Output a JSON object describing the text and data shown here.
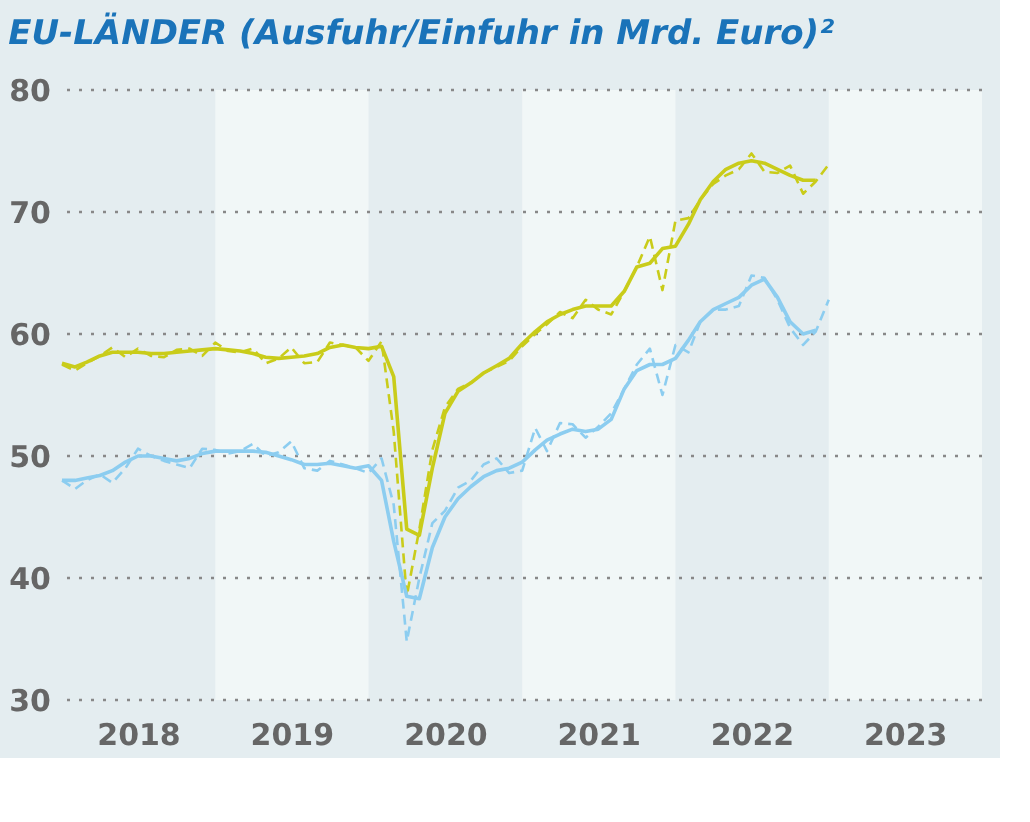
{
  "chart_data": {
    "type": "line",
    "title": "EU-LÄNDER (Ausfuhr/Einfuhr in Mrd. Euro)²",
    "x": [
      "2018-01",
      "2018-02",
      "2018-03",
      "2018-04",
      "2018-05",
      "2018-06",
      "2018-07",
      "2018-08",
      "2018-09",
      "2018-10",
      "2018-11",
      "2018-12",
      "2019-01",
      "2019-02",
      "2019-03",
      "2019-04",
      "2019-05",
      "2019-06",
      "2019-07",
      "2019-08",
      "2019-09",
      "2019-10",
      "2019-11",
      "2019-12",
      "2020-01",
      "2020-02",
      "2020-03",
      "2020-04",
      "2020-05",
      "2020-06",
      "2020-07",
      "2020-08",
      "2020-09",
      "2020-10",
      "2020-11",
      "2020-12",
      "2021-01",
      "2021-02",
      "2021-03",
      "2021-04",
      "2021-05",
      "2021-06",
      "2021-07",
      "2021-08",
      "2021-09",
      "2021-10",
      "2021-11",
      "2021-12",
      "2022-01",
      "2022-02",
      "2022-03",
      "2022-04",
      "2022-05",
      "2022-06",
      "2022-07",
      "2022-08",
      "2022-09",
      "2022-10",
      "2022-11",
      "2022-12",
      "2023-01"
    ],
    "series": [
      {
        "color": "#c9cc1a",
        "line_style": "dashed",
        "values": [
          57.5,
          57.0,
          57.6,
          58.2,
          58.9,
          58.1,
          58.8,
          58.2,
          58.1,
          58.7,
          58.8,
          58.2,
          59.3,
          58.6,
          58.5,
          58.8,
          57.6,
          58.0,
          58.9,
          57.6,
          57.7,
          59.3,
          59.1,
          58.9,
          57.8,
          59.4,
          52.0,
          38.5,
          44.0,
          50.5,
          54.0,
          55.5,
          56.0,
          56.8,
          57.3,
          57.8,
          59.0,
          60.0,
          60.8,
          61.8,
          61.3,
          62.8,
          62.0,
          61.6,
          63.5,
          65.5,
          68.0,
          63.6,
          69.3,
          69.5,
          71.0,
          72.3,
          73.0,
          73.5,
          74.8,
          73.3,
          73.2,
          73.8,
          71.5,
          72.5,
          73.9
        ]
      },
      {
        "color": "#c9cc1a",
        "line_style": "solid",
        "values": [
          57.6,
          57.3,
          57.7,
          58.2,
          58.5,
          58.5,
          58.5,
          58.4,
          58.4,
          58.5,
          58.6,
          58.7,
          58.8,
          58.7,
          58.6,
          58.4,
          58.1,
          58.0,
          58.1,
          58.2,
          58.4,
          58.9,
          59.1,
          58.9,
          58.8,
          59.0,
          56.5,
          44.0,
          43.5,
          49.0,
          53.5,
          55.3,
          56.0,
          56.8,
          57.4,
          58.0,
          59.2,
          60.2,
          61.0,
          61.6,
          62.0,
          62.3,
          62.3,
          62.3,
          63.5,
          65.5,
          65.8,
          67.0,
          67.2,
          69.0,
          71.0,
          72.5,
          73.5,
          74.0,
          74.2,
          74.0,
          73.5,
          73.0,
          72.6,
          72.6,
          null
        ]
      },
      {
        "color": "#8ccdf0",
        "line_style": "dashed",
        "values": [
          48.0,
          47.3,
          48.0,
          48.5,
          47.8,
          49.0,
          50.6,
          50.0,
          49.6,
          49.3,
          49.0,
          50.6,
          50.5,
          50.2,
          50.4,
          51.0,
          50.0,
          50.3,
          51.2,
          49.0,
          48.8,
          49.6,
          49.3,
          49.0,
          48.6,
          49.8,
          46.0,
          34.8,
          40.0,
          44.5,
          45.5,
          47.4,
          48.0,
          49.3,
          49.8,
          48.6,
          48.8,
          52.3,
          50.4,
          52.7,
          52.6,
          51.5,
          52.4,
          53.5,
          55.5,
          57.5,
          58.8,
          55.0,
          59.1,
          58.5,
          61.0,
          62.0,
          62.0,
          62.3,
          64.8,
          64.6,
          62.8,
          60.5,
          59.1,
          60.2,
          62.8
        ]
      },
      {
        "color": "#8ccdf0",
        "line_style": "solid",
        "values": [
          48.0,
          48.0,
          48.2,
          48.4,
          48.8,
          49.5,
          50.0,
          50.0,
          49.8,
          49.6,
          49.8,
          50.2,
          50.4,
          50.4,
          50.4,
          50.4,
          50.3,
          50.0,
          49.7,
          49.3,
          49.3,
          49.4,
          49.2,
          49.0,
          49.2,
          48.0,
          43.0,
          38.5,
          38.3,
          42.5,
          45.0,
          46.5,
          47.5,
          48.3,
          48.8,
          49.0,
          49.5,
          50.5,
          51.3,
          51.8,
          52.2,
          52.0,
          52.2,
          53.0,
          55.5,
          57.0,
          57.5,
          57.5,
          58.0,
          59.5,
          61.0,
          62.0,
          62.5,
          63.0,
          64.0,
          64.5,
          63.0,
          61.0,
          60.0,
          60.3,
          null
        ]
      }
    ],
    "xlim": [
      "2018-01",
      "2024-01"
    ],
    "xticks": [
      {
        "value": "2018-07",
        "label": "2018"
      },
      {
        "value": "2019-07",
        "label": "2019"
      },
      {
        "value": "2020-07",
        "label": "2020"
      },
      {
        "value": "2021-07",
        "label": "2021"
      },
      {
        "value": "2022-07",
        "label": "2022"
      },
      {
        "value": "2023-07",
        "label": "2023"
      }
    ],
    "ylim": [
      30,
      80
    ],
    "yticks": [
      30,
      40,
      50,
      60,
      70,
      80
    ],
    "grid": "y",
    "marker": "none",
    "bands": [
      {
        "axis": "x",
        "from": "2019-01",
        "to": "2020-01",
        "color": "#f1f7f7"
      },
      {
        "axis": "x",
        "from": "2021-01",
        "to": "2022-01",
        "color": "#f1f7f7"
      },
      {
        "axis": "x",
        "from": "2023-01",
        "to": "2024-01",
        "color": "#f1f7f7"
      }
    ]
  }
}
